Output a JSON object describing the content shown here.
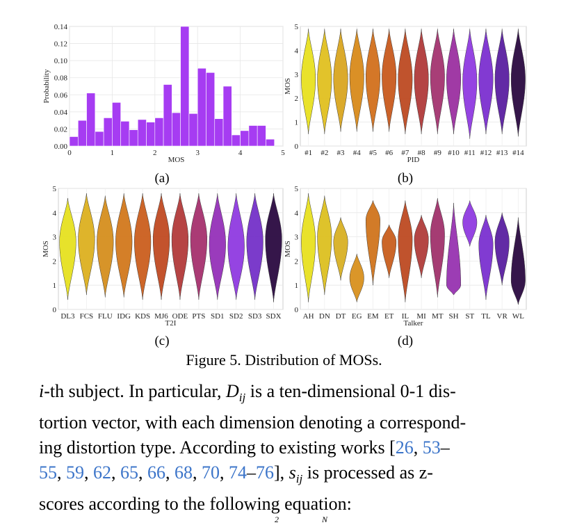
{
  "figure": {
    "caption": "Figure 5. Distribution of MOSs.",
    "panels": [
      {
        "id": "a",
        "label": "(a)"
      },
      {
        "id": "b",
        "label": "(b)"
      },
      {
        "id": "c",
        "label": "(c)"
      },
      {
        "id": "d",
        "label": "(d)"
      }
    ]
  },
  "chart_data": [
    {
      "panel": "(a)",
      "type": "bar",
      "xlabel": "MOS",
      "ylabel": "Probability",
      "xlim": [
        0,
        5
      ],
      "ylim": [
        0,
        0.14
      ],
      "xticks": [
        "0",
        "1",
        "2",
        "3",
        "4",
        "5"
      ],
      "yticks": [
        "0.00",
        "0.02",
        "0.04",
        "0.06",
        "0.08",
        "0.10",
        "0.12",
        "0.14"
      ],
      "bin_width": 0.2,
      "bin_starts": [
        0.0,
        0.2,
        0.4,
        0.6,
        0.8,
        1.0,
        1.2,
        1.4,
        1.6,
        1.8,
        2.0,
        2.2,
        2.4,
        2.6,
        2.8,
        3.0,
        3.2,
        3.4,
        3.6,
        3.8,
        4.0,
        4.2,
        4.4,
        4.6
      ],
      "values": [
        0.011,
        0.03,
        0.062,
        0.017,
        0.033,
        0.051,
        0.029,
        0.019,
        0.031,
        0.028,
        0.033,
        0.072,
        0.039,
        0.14,
        0.038,
        0.091,
        0.086,
        0.032,
        0.07,
        0.013,
        0.018,
        0.024,
        0.024,
        0.008
      ],
      "color": "#a63cf2",
      "grid": true
    },
    {
      "panel": "(b)",
      "type": "violin",
      "xlabel": "PID",
      "ylabel": "MOS",
      "ylim": [
        0,
        5
      ],
      "yticks": [
        "0",
        "1",
        "2",
        "3",
        "4",
        "5"
      ],
      "categories": [
        "#1",
        "#2",
        "#3",
        "#4",
        "#5",
        "#6",
        "#7",
        "#8",
        "#9",
        "#10",
        "#11",
        "#12",
        "#13",
        "#14"
      ],
      "medians": [
        2.8,
        2.8,
        2.8,
        2.9,
        2.9,
        2.9,
        2.8,
        2.8,
        2.9,
        2.8,
        2.7,
        2.8,
        2.8,
        2.8
      ],
      "ranges": [
        [
          0.5,
          4.9
        ],
        [
          0.5,
          4.9
        ],
        [
          0.6,
          4.9
        ],
        [
          0.6,
          4.9
        ],
        [
          0.6,
          4.9
        ],
        [
          0.6,
          4.9
        ],
        [
          0.5,
          4.9
        ],
        [
          0.5,
          4.9
        ],
        [
          0.5,
          4.9
        ],
        [
          0.5,
          4.9
        ],
        [
          0.3,
          4.9
        ],
        [
          0.5,
          4.9
        ],
        [
          0.5,
          4.9
        ],
        [
          0.4,
          4.9
        ]
      ],
      "colors": [
        "#e8e020",
        "#e0c020",
        "#d9a520",
        "#d88a1a",
        "#d2701c",
        "#c85a1e",
        "#bd4a22",
        "#b03a3a",
        "#a33470",
        "#9b2fa0",
        "#8f3ae0",
        "#7b2fd0",
        "#5a1fa0",
        "#2a0a40"
      ],
      "grid": true
    },
    {
      "panel": "(c)",
      "type": "violin",
      "xlabel": "T2I",
      "ylabel": "MOS",
      "ylim": [
        0,
        5
      ],
      "yticks": [
        "0",
        "1",
        "2",
        "3",
        "4",
        "5"
      ],
      "categories": [
        "DL3",
        "FCS",
        "FLU",
        "IDG",
        "KDS",
        "MJ6",
        "ODE",
        "PTS",
        "SD1",
        "SD2",
        "SD3",
        "SDX"
      ],
      "medians": [
        2.8,
        2.9,
        2.8,
        2.8,
        2.8,
        2.9,
        2.9,
        2.9,
        2.7,
        2.6,
        2.8,
        2.9
      ],
      "ranges": [
        [
          0.4,
          4.6
        ],
        [
          0.6,
          4.8
        ],
        [
          0.5,
          4.7
        ],
        [
          0.5,
          4.8
        ],
        [
          0.4,
          4.8
        ],
        [
          0.4,
          4.8
        ],
        [
          0.4,
          4.8
        ],
        [
          0.4,
          4.8
        ],
        [
          0.4,
          4.8
        ],
        [
          0.4,
          4.8
        ],
        [
          0.4,
          4.8
        ],
        [
          0.3,
          4.8
        ]
      ],
      "colors": [
        "#e6e020",
        "#dcb020",
        "#d58e1d",
        "#d2781c",
        "#ca5e1e",
        "#c04a22",
        "#b23a3a",
        "#a5306e",
        "#9530b8",
        "#8f3ae0",
        "#7430c8",
        "#2a0a40"
      ],
      "grid": true
    },
    {
      "panel": "(d)",
      "type": "violin",
      "xlabel": "Talker",
      "ylabel": "MOS",
      "ylim": [
        0,
        5
      ],
      "yticks": [
        "0",
        "1",
        "2",
        "3",
        "4",
        "5"
      ],
      "categories": [
        "AH",
        "DN",
        "DT",
        "EG",
        "EM",
        "ET",
        "IL",
        "MI",
        "MT",
        "SH",
        "ST",
        "TL",
        "VR",
        "WL"
      ],
      "medians": [
        2.8,
        3.0,
        2.8,
        1.3,
        3.7,
        2.8,
        2.9,
        2.9,
        3.1,
        1.0,
        3.6,
        2.7,
        2.8,
        1.2
      ],
      "ranges": [
        [
          0.3,
          4.8
        ],
        [
          0.6,
          4.7
        ],
        [
          1.2,
          3.8
        ],
        [
          0.3,
          2.3
        ],
        [
          1.0,
          4.5
        ],
        [
          1.3,
          3.5
        ],
        [
          0.3,
          4.5
        ],
        [
          1.3,
          3.9
        ],
        [
          0.5,
          4.6
        ],
        [
          0.6,
          4.4
        ],
        [
          2.6,
          4.5
        ],
        [
          0.4,
          3.9
        ],
        [
          1.0,
          4.0
        ],
        [
          0.2,
          3.8
        ]
      ],
      "colors": [
        "#e8e020",
        "#dcc020",
        "#d8b024",
        "#d8901e",
        "#d0741c",
        "#c85e1e",
        "#bd4a22",
        "#b03c3a",
        "#a0326c",
        "#9733b0",
        "#8f3ae0",
        "#7a30d0",
        "#5a20a0",
        "#2a0a40"
      ],
      "grid": true
    }
  ],
  "text": {
    "lines": [
      [
        {
          "t": "i",
          "m": true
        },
        {
          "t": "-th subject. In particular, "
        },
        {
          "t": "D",
          "m": true
        },
        {
          "t": "ij",
          "m": true,
          "sub": true
        },
        {
          "t": " is a ten-dimensional 0-1 dis-"
        }
      ],
      [
        {
          "t": "tortion vector, with each dimension denoting a correspond-"
        }
      ],
      [
        {
          "t": "ing distortion type.  According to existing works ["
        },
        {
          "t": "26",
          "c": true
        },
        {
          "t": ", "
        },
        {
          "t": "53",
          "c": true
        },
        {
          "t": "–"
        }
      ],
      [
        {
          "t": "55",
          "c": true
        },
        {
          "t": ", "
        },
        {
          "t": "59",
          "c": true
        },
        {
          "t": ", "
        },
        {
          "t": "62",
          "c": true
        },
        {
          "t": ", "
        },
        {
          "t": "65",
          "c": true
        },
        {
          "t": ", "
        },
        {
          "t": "66",
          "c": true
        },
        {
          "t": ", "
        },
        {
          "t": "68",
          "c": true
        },
        {
          "t": ", "
        },
        {
          "t": "70",
          "c": true
        },
        {
          "t": ", "
        },
        {
          "t": "74",
          "c": true
        },
        {
          "t": "–"
        },
        {
          "t": "76",
          "c": true
        },
        {
          "t": "], "
        },
        {
          "t": "s",
          "m": true
        },
        {
          "t": "ij",
          "m": true,
          "sub": true
        },
        {
          "t": " is processed as z-"
        }
      ],
      [
        {
          "t": "scores according to the following equation:"
        }
      ]
    ]
  }
}
